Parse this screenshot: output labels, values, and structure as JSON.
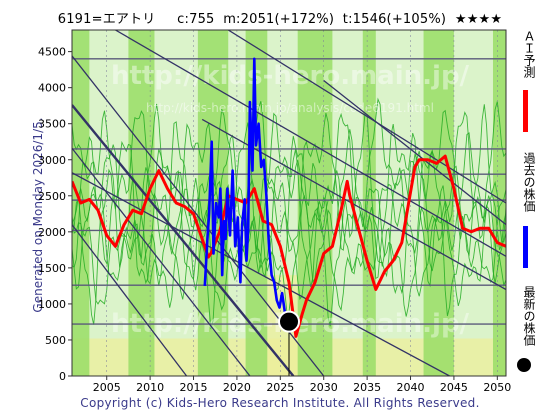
{
  "header": {
    "code_name": "6191=エアトリ",
    "current": "c:755",
    "max": "m:2051(+172%)",
    "target": "t:1546(+105%)",
    "rating": "★★★★"
  },
  "footer": {
    "copyright": "Copyright (c) Kids-Hero Research Institute. All Rights Reserved.",
    "generated": "Generated on Monday 2026/1/5."
  },
  "watermark": {
    "line1": "http://kids-hero.main.jp/",
    "line2": "http://kids-hero.main.jp/analysis/code6191.html"
  },
  "legend": {
    "ai_forecast": "ＡＩ予測",
    "past_price": "過去の株価",
    "latest_price": "最新の株価"
  },
  "colors": {
    "ai_forecast": "#ff0000",
    "past_price": "#0000ff",
    "latest_price": "#000000",
    "bands": "#99dd66",
    "band_lines": "#22aa22",
    "yellow_band": "#eeee99",
    "channel_lines": "#333366",
    "grid": "#5a5a7a"
  },
  "chart_data": {
    "type": "line",
    "xlim": [
      2001,
      2051
    ],
    "ylim": [
      0,
      4800
    ],
    "x_ticks": [
      2005,
      2010,
      2015,
      2020,
      2025,
      2030,
      2035,
      2040,
      2045,
      2050
    ],
    "y_ticks": [
      0,
      500,
      1000,
      1500,
      2000,
      2500,
      3000,
      3500,
      4000,
      4500
    ],
    "horizontal_levels": [
      720,
      1260,
      2020,
      2440,
      2800,
      3150,
      4400
    ],
    "channel_lines": [
      [
        2001,
        4440,
        2030,
        0
      ],
      [
        2001,
        3760,
        2026.5,
        0
      ],
      [
        2001,
        3160,
        2021.5,
        0
      ],
      [
        2001,
        2100,
        2014.2,
        0
      ],
      [
        2006,
        4800,
        2051,
        1660
      ],
      [
        2019,
        4800,
        2051,
        2400
      ],
      [
        2016,
        3560,
        2051,
        1200
      ],
      [
        2030,
        4100,
        2051,
        2100
      ],
      [
        2001,
        2820,
        2044.5,
        0
      ]
    ],
    "green_bands": [
      [
        2001,
        2003
      ],
      [
        2007.5,
        2010.5
      ],
      [
        2015.5,
        2019
      ],
      [
        2021,
        2023.5
      ],
      [
        2027,
        2031
      ],
      [
        2034.5,
        2036
      ],
      [
        2041.5,
        2045
      ],
      [
        2049.5,
        2051
      ]
    ],
    "series": [
      {
        "name": "ＡＩ予測",
        "x": [
          2001,
          2002,
          2003,
          2004,
          2005,
          2006,
          2007,
          2008,
          2009,
          2010,
          2011,
          2012,
          2013,
          2014,
          2015,
          2016,
          2016.7,
          2017,
          2018,
          2019,
          2020,
          2021,
          2022,
          2023,
          2024,
          2025,
          2026,
          2026.8,
          2027.5,
          2028,
          2029,
          2030,
          2031,
          2032,
          2032.7,
          2033,
          2034,
          2035,
          2036,
          2037,
          2038,
          2039,
          2040,
          2040.5,
          2041,
          2042,
          2043,
          2044,
          2045,
          2046,
          2047,
          2048,
          2049,
          2050,
          2051
        ],
        "y": [
          2700,
          2400,
          2450,
          2300,
          1950,
          1800,
          2100,
          2300,
          2250,
          2600,
          2850,
          2600,
          2400,
          2350,
          2250,
          1900,
          1650,
          1700,
          2000,
          2500,
          2450,
          2400,
          2600,
          2150,
          2100,
          1800,
          1300,
          550,
          850,
          1050,
          1300,
          1700,
          1800,
          2300,
          2700,
          2500,
          2050,
          1600,
          1200,
          1450,
          1600,
          1850,
          2550,
          2900,
          3000,
          3000,
          2950,
          3050,
          2600,
          2050,
          2000,
          2050,
          2050,
          1850,
          1800
        ]
      },
      {
        "name": "過去の株価",
        "x": [
          2016.3,
          2016.6,
          2016.8,
          2017.1,
          2017.3,
          2017.6,
          2017.9,
          2018.1,
          2018.3,
          2018.5,
          2018.7,
          2018.9,
          2019.2,
          2019.5,
          2019.8,
          2020.1,
          2020.4,
          2020.6,
          2020.9,
          2021.1,
          2021.3,
          2021.5,
          2021.8,
          2022.0,
          2022.2,
          2022.5,
          2022.8,
          2023.1,
          2023.4,
          2023.7,
          2024.0,
          2024.3,
          2024.6,
          2024.9,
          2025.2,
          2025.5,
          2025.8,
          2026.0
        ],
        "y": [
          1250,
          1900,
          2250,
          3250,
          1700,
          2400,
          2200,
          2600,
          1400,
          2150,
          1900,
          2600,
          1950,
          2850,
          1800,
          2200,
          1300,
          2100,
          2450,
          1600,
          2050,
          3800,
          2850,
          4400,
          3200,
          3500,
          2900,
          3000,
          2500,
          1800,
          1400,
          1300,
          1050,
          950,
          1150,
          900,
          800,
          755
        ]
      }
    ],
    "latest": {
      "x": 2026.0,
      "y": 755
    }
  }
}
